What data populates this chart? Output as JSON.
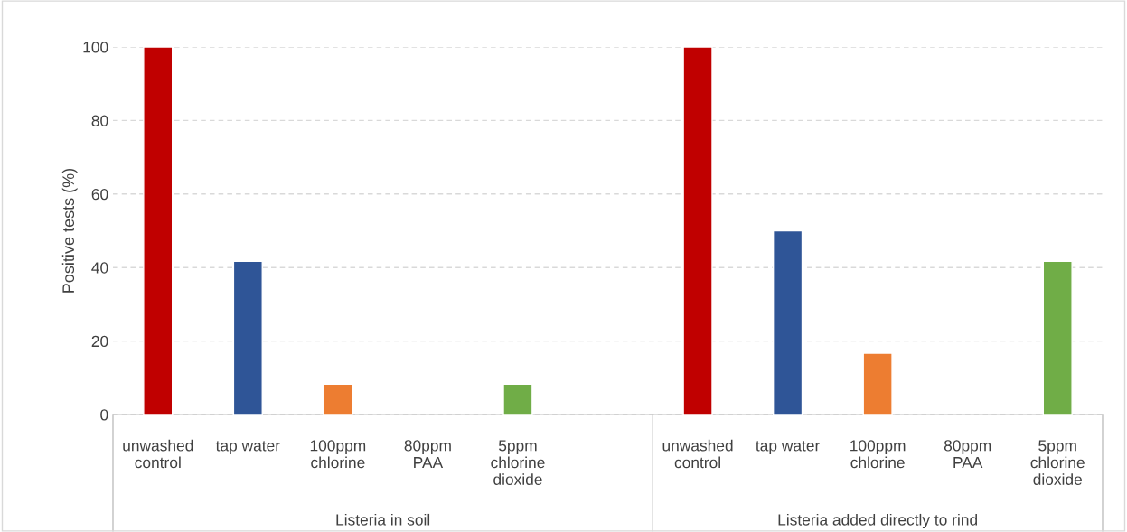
{
  "chart_data": {
    "type": "bar",
    "ylabel": "Positive tests (%)",
    "categories": [
      "unwashed\ncontrol",
      "tap water",
      "100ppm\nchlorine",
      "80ppm\nPAA",
      "5ppm\nchlorine\ndioxide",
      null,
      "unwashed\ncontrol",
      "tap water",
      "100ppm\nchlorine",
      "80ppm\nPAA",
      "5ppm\nchlorine\ndioxide"
    ],
    "values": [
      100,
      41.7,
      8.3,
      0,
      8.3,
      null,
      100,
      50,
      16.7,
      0,
      41.7
    ],
    "colors": [
      "#c00000",
      "#2f5597",
      "#ed7d31",
      null,
      "#70ad47",
      null,
      "#c00000",
      "#2f5597",
      "#ed7d31",
      null,
      "#70ad47"
    ],
    "ylim": [
      0,
      100
    ],
    "yticks": [
      0,
      20,
      40,
      60,
      80,
      100
    ],
    "grid": "y",
    "legend": false,
    "annotations": [
      "Listeria in soil",
      "Listeria added directly to rind"
    ]
  }
}
